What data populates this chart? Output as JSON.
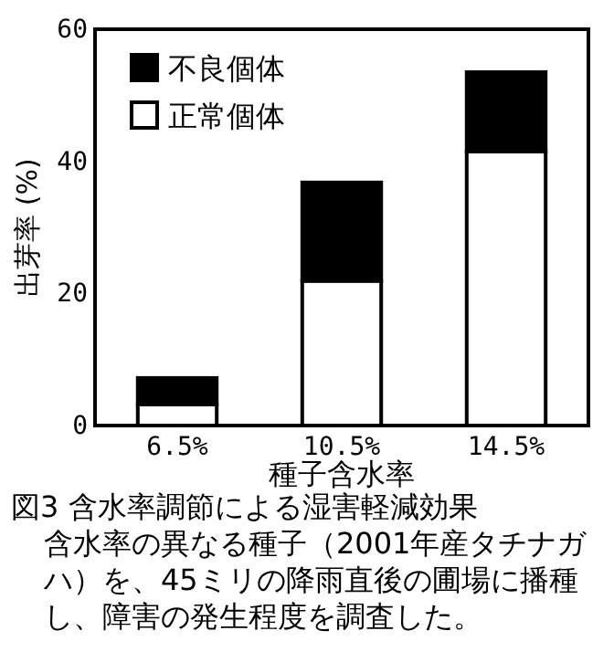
{
  "chart_data": {
    "type": "bar",
    "stacked": true,
    "title": "図3 含水率調節による湿害軽減効果",
    "xlabel": "種子含水率",
    "ylabel": "出芽率 (%)",
    "categories": [
      "6.5%",
      "10.5%",
      "14.5%"
    ],
    "series": [
      {
        "name": "正常個体",
        "color": "#ffffff",
        "values": [
          3.2,
          21.9,
          41.5
        ]
      },
      {
        "name": "不良個体",
        "color": "#000000",
        "values": [
          4,
          14.9,
          12
        ]
      }
    ],
    "ylim": [
      0,
      60
    ],
    "yticks": [
      0,
      20,
      40,
      60
    ],
    "legend": "top left",
    "annotations": [
      "含水率の異なる種子（2001年産タチナガハ）を、45ミリの降雨直後の圃場に播種し、障害の発生程度を調査した。"
    ]
  }
}
